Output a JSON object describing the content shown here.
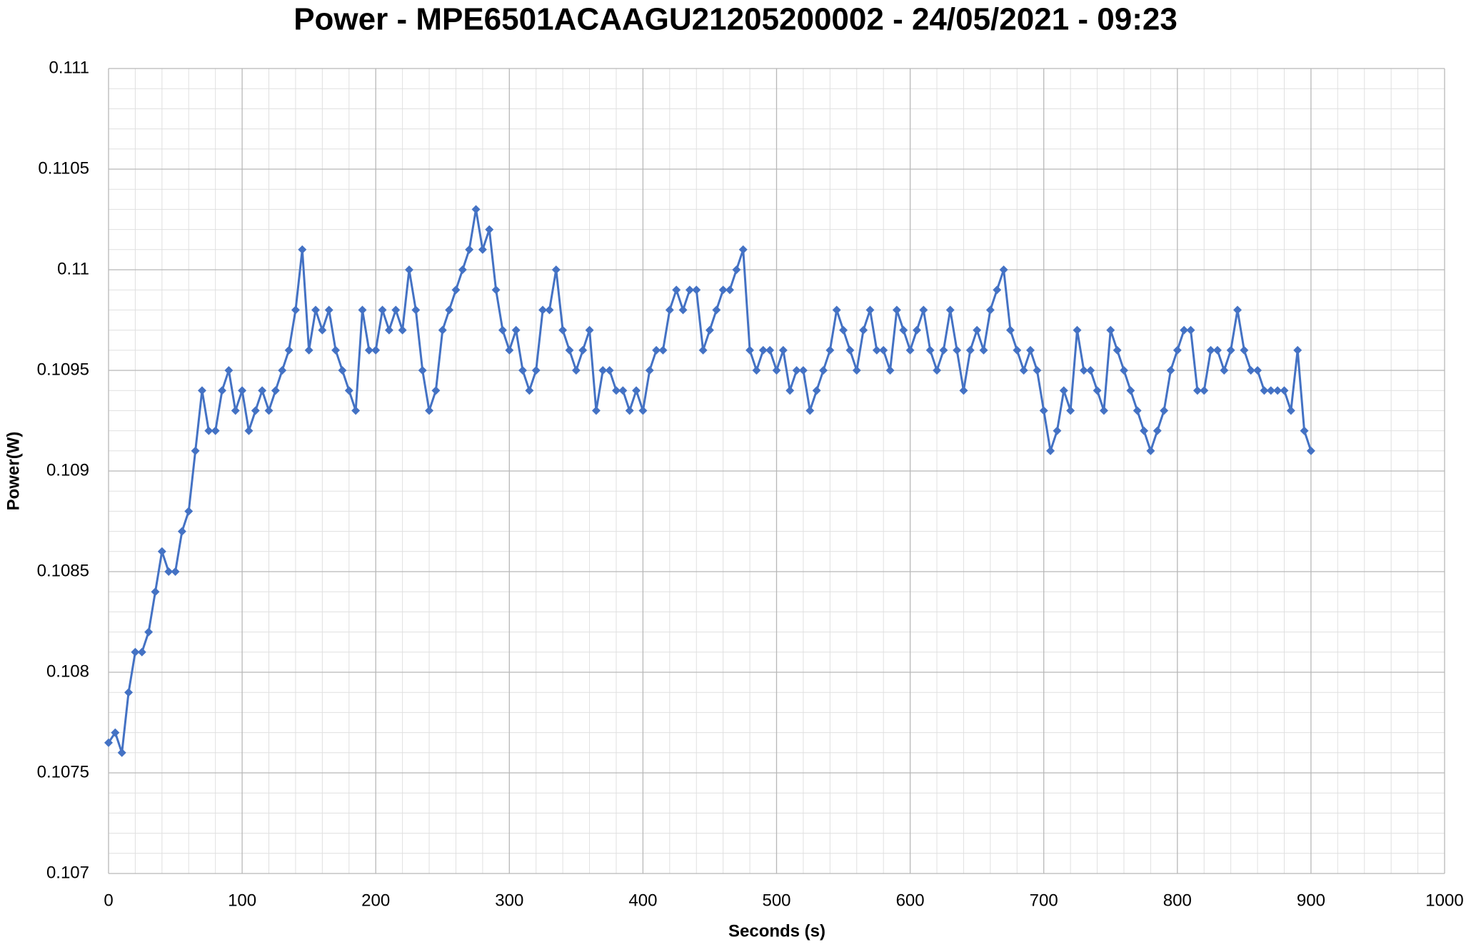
{
  "chart_data": {
    "type": "line",
    "title": "Power - MPE6501ACAAGU21205200002 - 24/05/2021 - 09:23",
    "x_label": "Seconds (s)",
    "y_label": "Power(W)",
    "x": [
      0,
      5,
      10,
      15,
      20,
      25,
      30,
      35,
      40,
      45,
      50,
      55,
      60,
      65,
      70,
      75,
      80,
      85,
      90,
      95,
      100,
      105,
      110,
      115,
      120,
      125,
      130,
      135,
      140,
      145,
      150,
      155,
      160,
      165,
      170,
      175,
      180,
      185,
      190,
      195,
      200,
      205,
      210,
      215,
      220,
      225,
      230,
      235,
      240,
      245,
      250,
      255,
      260,
      265,
      270,
      275,
      280,
      285,
      290,
      295,
      300,
      305,
      310,
      315,
      320,
      325,
      330,
      335,
      340,
      345,
      350,
      355,
      360,
      365,
      370,
      375,
      380,
      385,
      390,
      395,
      400,
      405,
      410,
      415,
      420,
      425,
      430,
      435,
      440,
      445,
      450,
      455,
      460,
      465,
      470,
      475,
      480,
      485,
      490,
      495,
      500,
      505,
      510,
      515,
      520,
      525,
      530,
      535,
      540,
      545,
      550,
      555,
      560,
      565,
      570,
      575,
      580,
      585,
      590,
      595,
      600,
      605,
      610,
      615,
      620,
      625,
      630,
      635,
      640,
      645,
      650,
      655,
      660,
      665,
      670,
      675,
      680,
      685,
      690,
      695,
      700,
      705,
      710,
      715,
      720,
      725,
      730,
      735,
      740,
      745,
      750,
      755,
      760,
      765,
      770,
      775,
      780,
      785,
      790,
      795,
      800,
      805,
      810,
      815,
      820,
      825,
      830,
      835,
      840,
      845,
      850,
      855,
      860,
      865,
      870,
      875,
      880,
      885,
      890,
      895,
      900
    ],
    "series": [
      {
        "name": "Power",
        "color": "#4472c4",
        "values": [
          0.10765,
          0.1077,
          0.1076,
          0.1079,
          0.1081,
          0.1081,
          0.1082,
          0.1084,
          0.1086,
          0.1085,
          0.1085,
          0.1087,
          0.1088,
          0.1091,
          0.1094,
          0.1092,
          0.1092,
          0.1094,
          0.1095,
          0.1093,
          0.1094,
          0.1092,
          0.1093,
          0.1094,
          0.1093,
          0.1094,
          0.1095,
          0.1096,
          0.1098,
          0.1101,
          0.1096,
          0.1098,
          0.1097,
          0.1098,
          0.1096,
          0.1095,
          0.1094,
          0.1093,
          0.1098,
          0.1096,
          0.1096,
          0.1098,
          0.1097,
          0.1098,
          0.1097,
          0.11,
          0.1098,
          0.1095,
          0.1093,
          0.1094,
          0.1097,
          0.1098,
          0.1099,
          0.11,
          0.1101,
          0.1103,
          0.1101,
          0.1102,
          0.1099,
          0.1097,
          0.1096,
          0.1097,
          0.1095,
          0.1094,
          0.1095,
          0.1098,
          0.1098,
          0.11,
          0.1097,
          0.1096,
          0.1095,
          0.1096,
          0.1097,
          0.1093,
          0.1095,
          0.1095,
          0.1094,
          0.1094,
          0.1093,
          0.1094,
          0.1093,
          0.1095,
          0.1096,
          0.1096,
          0.1098,
          0.1099,
          0.1098,
          0.1099,
          0.1099,
          0.1096,
          0.1097,
          0.1098,
          0.1099,
          0.1099,
          0.11,
          0.1101,
          0.1096,
          0.1095,
          0.1096,
          0.1096,
          0.1095,
          0.1096,
          0.1094,
          0.1095,
          0.1095,
          0.1093,
          0.1094,
          0.1095,
          0.1096,
          0.1098,
          0.1097,
          0.1096,
          0.1095,
          0.1097,
          0.1098,
          0.1096,
          0.1096,
          0.1095,
          0.1098,
          0.1097,
          0.1096,
          0.1097,
          0.1098,
          0.1096,
          0.1095,
          0.1096,
          0.1098,
          0.1096,
          0.1094,
          0.1096,
          0.1097,
          0.1096,
          0.1098,
          0.1099,
          0.11,
          0.1097,
          0.1096,
          0.1095,
          0.1096,
          0.1095,
          0.1093,
          0.1091,
          0.1092,
          0.1094,
          0.1093,
          0.1097,
          0.1095,
          0.1095,
          0.1094,
          0.1093,
          0.1097,
          0.1096,
          0.1095,
          0.1094,
          0.1093,
          0.1092,
          0.1091,
          0.1092,
          0.1093,
          0.1095,
          0.1096,
          0.1097,
          0.1097,
          0.1094,
          0.1094,
          0.1096,
          0.1096,
          0.1095,
          0.1096,
          0.1098,
          0.1096,
          0.1095,
          0.1095,
          0.1094,
          0.1094,
          0.1094,
          0.1094,
          0.1093,
          0.1096,
          0.1092,
          0.1091
        ]
      }
    ],
    "xlim": [
      0,
      1000
    ],
    "xticks": [
      0,
      100,
      200,
      300,
      400,
      500,
      600,
      700,
      800,
      900,
      1000
    ],
    "ylim": [
      0.107,
      0.111
    ],
    "yticks": [
      0.107,
      0.1075,
      0.108,
      0.1085,
      0.109,
      0.1095,
      0.11,
      0.1105,
      0.111
    ],
    "grid": true,
    "minor_grid": true
  }
}
